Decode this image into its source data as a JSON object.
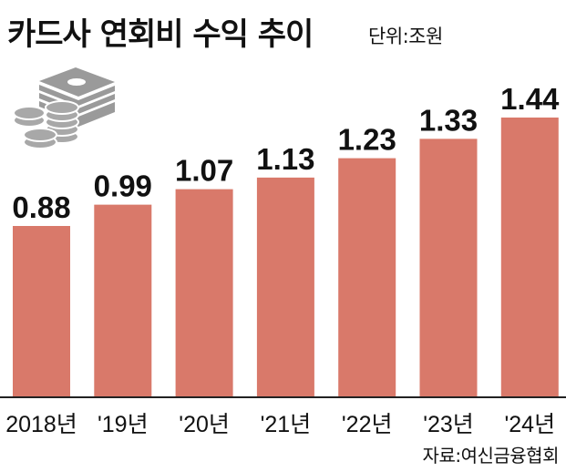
{
  "header": {
    "title": "카드사 연회비 수익 추이",
    "unit": "단위:조원"
  },
  "footer": {
    "source": "자료:여신금융협회"
  },
  "decoration": {
    "icon": "money-stack-icon"
  },
  "colors": {
    "bar": "#d9796a",
    "axis": "#222222",
    "text": "#111111"
  },
  "chart_data": {
    "type": "bar",
    "categories": [
      "2018년",
      "'19년",
      "'20년",
      "'21년",
      "'22년",
      "'23년",
      "'24년"
    ],
    "values": [
      0.88,
      0.99,
      1.07,
      1.13,
      1.23,
      1.33,
      1.44
    ],
    "value_labels": [
      "0.88",
      "0.99",
      "1.07",
      "1.13",
      "1.23",
      "1.33",
      "1.44"
    ],
    "title": "카드사 연회비 수익 추이",
    "ylabel": "단위:조원",
    "ylim": [
      0,
      1.44
    ],
    "grid": false,
    "legend": "none"
  }
}
